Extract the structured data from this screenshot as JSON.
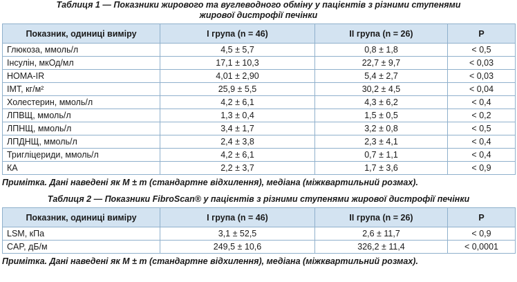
{
  "tables": [
    {
      "caption_lines": [
        "Таблиця 1 — Показники жирового та вуглеводного обміну у пацієнтів з різними ступенями",
        "жирової дистрофії печінки"
      ],
      "header": [
        "Показник, одиниці виміру",
        "I група (n = 46)",
        "II група (n = 26)",
        "P"
      ],
      "rows": [
        [
          "Глюкоза, ммоль/л",
          "4,5 ± 5,7",
          "0,8 ± 1,8",
          "< 0,5"
        ],
        [
          "Інсулін, мкОд/мл",
          "17,1 ± 10,3",
          "22,7 ± 9,7",
          "< 0,03"
        ],
        [
          "HOMA-IR",
          "4,01 ± 2,90",
          "5,4 ± 2,7",
          "< 0,03"
        ],
        [
          "ІМТ, кг/м²",
          "25,9 ± 5,5",
          "30,2 ± 4,5",
          "< 0,04"
        ],
        [
          "Холестерин, ммоль/л",
          "4,2 ± 6,1",
          "4,3 ± 6,2",
          "< 0,4"
        ],
        [
          "ЛПВЩ, ммоль/л",
          "1,3 ± 0,4",
          "1,5 ± 0,5",
          "< 0,2"
        ],
        [
          "ЛПНЩ, ммоль/л",
          "3,4 ± 1,7",
          "3,2 ± 0,8",
          "< 0,5"
        ],
        [
          "ЛПДНЩ, ммоль/л",
          "2,4 ± 3,8",
          "2,3 ± 4,1",
          "< 0,4"
        ],
        [
          "Тригліцериди, ммоль/л",
          "4,2 ± 6,1",
          "0,7 ± 1,1",
          "< 0,4"
        ],
        [
          "КА",
          "2,2 ± 3,7",
          "1,7 ± 3,6",
          "< 0,9"
        ]
      ],
      "note": "Примітка. Дані наведені як M ± m (стандартне відхилення), медіана (міжквартильний розмах)."
    },
    {
      "caption_lines": [
        "Таблиця 2 — Показники FibroScan® у пацієнтів з різними ступенями жирової дистрофії печінки"
      ],
      "header": [
        "Показник, одиниці виміру",
        "I група (n = 46)",
        "II група (n = 26)",
        "P"
      ],
      "rows": [
        [
          "LSM, кПа",
          "3,1 ± 52,5",
          "2,6 ± 11,7",
          "< 0,9"
        ],
        [
          "CAP, дБ/м",
          "249,5 ± 10,6",
          "326,2 ± 11,4",
          "< 0,0001"
        ]
      ],
      "note": "Примітка. Дані наведені як M ± m (стандартне відхилення), медіана (міжквартильний розмах)."
    }
  ]
}
